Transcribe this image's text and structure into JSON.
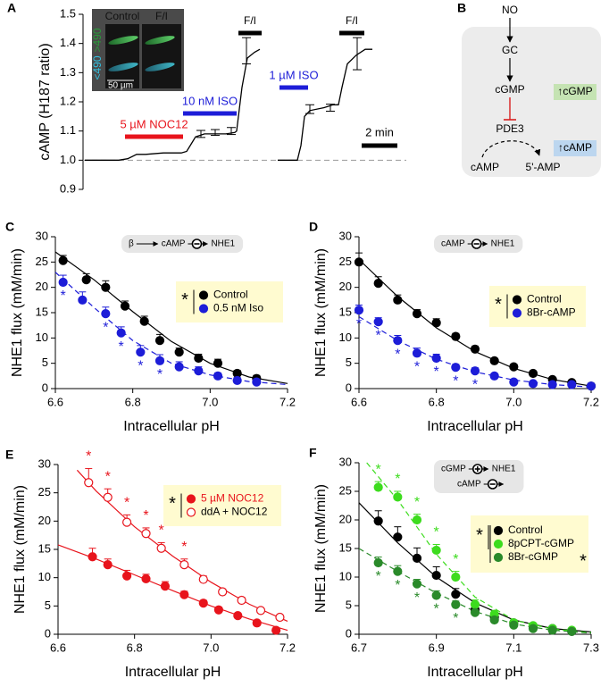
{
  "chart_data": [
    {
      "type": "line",
      "panel_label": "A",
      "y_label": "cAMP (H187 ratio)",
      "xlim": [
        0,
        18.1
      ],
      "ylim": [
        0.9,
        1.5
      ],
      "yticks": [
        0.9,
        {
          "value": 1,
          "label": "1.0"
        },
        1.1,
        1.2,
        1.3,
        1.4,
        1.5
      ],
      "reference_line": 1,
      "series": [
        {
          "color": "#000000",
          "x": [
            0.1,
            2.0,
            2.5,
            3.0,
            3.5,
            4.5,
            5.5,
            5.8,
            6.0,
            6.3,
            6.8,
            8.0,
            8.5,
            8.6,
            8.9,
            9.2,
            9.6,
            9.9,
            null,
            10.9,
            12.0,
            12.2,
            12.4,
            12.7,
            13.5,
            14.0,
            14.3,
            14.5,
            14.8,
            15.3,
            15.8,
            16.2
          ],
          "values": [
            1.0,
            1.0,
            1.005,
            1.02,
            1.02,
            1.025,
            1.025,
            1.03,
            1.05,
            1.08,
            1.09,
            1.09,
            1.095,
            1.1,
            1.25,
            1.35,
            1.37,
            1.38,
            null,
            1.0,
            1.0,
            1.05,
            1.15,
            1.17,
            1.18,
            1.19,
            1.19,
            1.25,
            1.33,
            1.36,
            1.38,
            1.38
          ]
        }
      ],
      "error_points": {
        "x": [
          6.6,
          7.4,
          8.3,
          9.15,
          12.7,
          13.85,
          15.35
        ],
        "values": [
          1.09,
          1.095,
          1.1,
          1.375,
          1.175,
          1.18,
          1.365
        ],
        "errors": [
          0.012,
          0.01,
          0.012,
          0.045,
          0.015,
          0.012,
          0.055
        ]
      },
      "periods": [
        {
          "label": "5 µM NOC12",
          "start": 2.35,
          "end": 5.6,
          "color": "#e8141c"
        },
        {
          "label": "10 nM ISO",
          "start": 5.6,
          "end": 8.6,
          "color": "#1d1dd8"
        },
        {
          "label": "F/I",
          "start": 8.7,
          "end": 10.0,
          "color": "#000000"
        },
        {
          "label": "1 µM ISO",
          "start": 11.0,
          "end": 12.6,
          "color": "#1d1dd8"
        },
        {
          "label": "F/I",
          "start": 14.35,
          "end": 15.75,
          "color": "#000000"
        }
      ],
      "scale_bar": {
        "label": "2 min",
        "length": 2
      },
      "inset": {
        "labels": [
          "Control",
          "F/I"
        ],
        "channels": [
          ">490",
          "<490"
        ],
        "scale": "50 µm"
      }
    },
    {
      "type": "scatter",
      "panel_label": "C",
      "x_label": "Intracellular pH",
      "y_label": "NHE1 flux (mM/min)",
      "xlim": [
        6.6,
        7.2
      ],
      "xticks": [
        6.6,
        6.8,
        {
          "value": 7,
          "label": "7.0"
        },
        7.2
      ],
      "ylim": [
        0,
        30
      ],
      "yticks": [
        0,
        5,
        10,
        15,
        20,
        25,
        30
      ],
      "significance_marker": "*",
      "inset": [
        "β",
        "cAMP",
        "NHE1"
      ],
      "series": [
        {
          "name": "Control",
          "color": "#000000",
          "filled": true,
          "x": [
            6.62,
            6.68,
            6.73,
            6.78,
            6.83,
            6.87,
            6.92,
            6.97,
            7.02,
            7.07,
            7.12
          ],
          "values": [
            25.3,
            21.5,
            20.0,
            16.3,
            13.3,
            9.5,
            7.2,
            6.0,
            5.0,
            3.0,
            2.0
          ],
          "errors": [
            1.0,
            1.2,
            1.3,
            1.0,
            1.0,
            1.2,
            0.8,
            0.8,
            0.8,
            0.6,
            0.6
          ],
          "significant": [
            false,
            false,
            false,
            false,
            false,
            false,
            false,
            false,
            false,
            false,
            false
          ],
          "fit": {
            "dashed": false,
            "x": [
              6.6,
              6.7,
              6.8,
              6.9,
              7.0,
              7.1,
              7.2
            ],
            "values": [
              27,
              21.5,
              15.2,
              9.3,
              5,
              2.3,
              1
            ]
          }
        },
        {
          "name": "0.5 nM Iso",
          "color": "#1d1dd8",
          "filled": true,
          "x": [
            6.62,
            6.67,
            6.73,
            6.77,
            6.82,
            6.87,
            6.92,
            6.97,
            7.02,
            7.07,
            7.12
          ],
          "values": [
            21.0,
            17.5,
            14.8,
            11.0,
            7.2,
            5.5,
            4.3,
            3.5,
            2.5,
            1.6,
            1.3
          ],
          "errors": [
            1.4,
            1.6,
            1.3,
            1.2,
            1.3,
            1.2,
            1.0,
            0.8,
            0.6,
            0.6,
            0.6
          ],
          "significant": [
            true,
            false,
            true,
            true,
            true,
            true,
            false,
            false,
            false,
            false,
            false
          ],
          "fit": {
            "dashed": true,
            "x": [
              6.6,
              6.7,
              6.8,
              6.9,
              7.0,
              7.1,
              7.2
            ],
            "values": [
              23,
              16,
              9.5,
              5,
              2.7,
              1.4,
              0.8
            ]
          }
        }
      ]
    },
    {
      "type": "scatter",
      "panel_label": "D",
      "x_label": "Intracellular pH",
      "y_label": "NHE1 flux (mM/min)",
      "xlim": [
        6.6,
        7.2
      ],
      "xticks": [
        6.6,
        6.8,
        {
          "value": 7,
          "label": "7.0"
        },
        7.2
      ],
      "ylim": [
        0,
        30
      ],
      "yticks": [
        0,
        5,
        10,
        15,
        20,
        25,
        30
      ],
      "significance_marker": "*",
      "inset": [
        "cAMP",
        "NHE1"
      ],
      "series": [
        {
          "name": "Control",
          "color": "#000000",
          "filled": true,
          "x": [
            6.6,
            6.65,
            6.7,
            6.75,
            6.8,
            6.85,
            6.9,
            6.95,
            7.0,
            7.05,
            7.1,
            7.15,
            7.2
          ],
          "values": [
            25.0,
            20.8,
            17.5,
            14.8,
            13.0,
            10.3,
            7.8,
            5.5,
            4.3,
            3.0,
            1.8,
            1.2,
            0.5
          ],
          "errors": [
            1.8,
            1.3,
            1.0,
            0.8,
            0.8,
            0.6,
            0.6,
            0.5,
            0.5,
            0.4,
            0.4,
            0.3,
            0.3
          ],
          "significant": [
            false,
            false,
            false,
            false,
            false,
            false,
            false,
            false,
            false,
            false,
            false,
            false,
            false
          ],
          "fit": {
            "dashed": false,
            "x": [
              6.6,
              6.7,
              6.8,
              6.9,
              7.0,
              7.1,
              7.2
            ],
            "values": [
              25.5,
              18.2,
              12,
              7.3,
              4,
              1.8,
              0.5
            ]
          }
        },
        {
          "name": "8Br-cAMP",
          "color": "#1d1dd8",
          "filled": true,
          "x": [
            6.6,
            6.65,
            6.7,
            6.75,
            6.8,
            6.85,
            6.9,
            6.95,
            7.0,
            7.05,
            7.1,
            7.15,
            7.2
          ],
          "values": [
            15.5,
            13.2,
            9.5,
            7.0,
            6.0,
            4.2,
            3.5,
            2.5,
            1.3,
            1.0,
            0.8,
            0.8,
            0.5
          ],
          "errors": [
            1.0,
            0.8,
            1.0,
            1.0,
            0.8,
            0.6,
            0.6,
            0.5,
            0.5,
            0.4,
            0.3,
            0.3,
            0.3
          ],
          "significant": [
            true,
            true,
            true,
            true,
            true,
            true,
            true,
            false,
            false,
            false,
            false,
            false,
            false
          ],
          "fit": {
            "dashed": true,
            "x": [
              6.6,
              6.7,
              6.8,
              6.9,
              7.0,
              7.1,
              7.2
            ],
            "values": [
              14.2,
              9.5,
              5.8,
              3.3,
              1.7,
              0.8,
              0.3
            ]
          }
        }
      ]
    },
    {
      "type": "scatter",
      "panel_label": "E",
      "x_label": "Intracellular pH",
      "y_label": "NHE1 flux (mM/min)",
      "xlim": [
        6.6,
        7.2
      ],
      "xticks": [
        6.6,
        6.8,
        {
          "value": 7,
          "label": "7.0"
        },
        7.2
      ],
      "ylim": [
        0,
        30
      ],
      "yticks": [
        0,
        5,
        10,
        15,
        20,
        25,
        30
      ],
      "significance_marker": "*",
      "series": [
        {
          "name": "5  µM NOC12",
          "color": "#e8141c",
          "filled": true,
          "x": [
            6.69,
            6.73,
            6.78,
            6.83,
            6.88,
            6.93,
            6.98,
            7.02,
            7.07,
            7.12,
            7.17
          ],
          "values": [
            13.7,
            12.3,
            10.3,
            9.8,
            8.5,
            7.0,
            5.5,
            4.3,
            3.3,
            2.0,
            0.7
          ],
          "errors": [
            1.5,
            1.0,
            1.0,
            0.8,
            0.8,
            0.6,
            0.5,
            0.5,
            0.4,
            0.3,
            0.3
          ],
          "significant": [
            false,
            false,
            false,
            false,
            false,
            false,
            false,
            false,
            false,
            false,
            false
          ],
          "fit": {
            "dashed": false,
            "x": [
              6.6,
              6.7,
              6.8,
              6.9,
              7.0,
              7.1,
              7.2
            ],
            "values": [
              15.8,
              13.3,
              10.5,
              7.7,
              5,
              2.7,
              0.7
            ]
          }
        },
        {
          "name": "ddA + NOC12",
          "color": "#e8141c",
          "filled": false,
          "x": [
            6.68,
            6.73,
            6.78,
            6.83,
            6.87,
            6.93,
            6.98,
            7.03,
            7.08,
            7.13,
            7.18
          ],
          "values": [
            26.8,
            24.2,
            19.8,
            17.8,
            15.2,
            12.3,
            9.7,
            7.5,
            6.0,
            4.2,
            3.0
          ],
          "errors": [
            2.5,
            1.5,
            1.3,
            1.0,
            1.0,
            1.0,
            0.6,
            0.5,
            0.5,
            0.4,
            0.4
          ],
          "significant": [
            true,
            true,
            true,
            true,
            true,
            true,
            false,
            false,
            false,
            false,
            false
          ],
          "fit": {
            "dashed": false,
            "x": [
              6.65,
              6.7,
              6.8,
              6.9,
              7.0,
              7.1,
              7.2
            ],
            "values": [
              29,
              25.3,
              19,
              13.8,
              9.2,
              5.3,
              2.3
            ]
          }
        }
      ]
    },
    {
      "type": "scatter",
      "panel_label": "F",
      "x_label": "Intracellular pH",
      "y_label": "NHE1 flux (mM/min)",
      "xlim": [
        6.7,
        7.3
      ],
      "xticks": [
        6.7,
        6.9,
        7.1,
        7.3
      ],
      "ylim": [
        0,
        30
      ],
      "yticks": [
        0,
        5,
        10,
        15,
        20,
        25,
        30
      ],
      "significance_marker": "*",
      "inset": [
        "cGMP",
        "NHE1",
        "cAMP"
      ],
      "series": [
        {
          "name": "Control",
          "color": "#000000",
          "filled": true,
          "x": [
            6.75,
            6.8,
            6.85,
            6.9,
            6.95,
            7.0,
            7.05,
            7.1,
            7.15,
            7.2,
            7.25
          ],
          "values": [
            19.8,
            17.0,
            13.3,
            10.3,
            7.0,
            4.3,
            3.0,
            2.0,
            1.3,
            1.0,
            0.5
          ],
          "errors": [
            1.8,
            1.8,
            1.8,
            1.5,
            1.0,
            0.8,
            0.6,
            0.5,
            0.4,
            0.3,
            0.3
          ],
          "significant": [
            false,
            false,
            false,
            false,
            false,
            false,
            false,
            false,
            false,
            false,
            false
          ],
          "fit": {
            "dashed": false,
            "x": [
              6.7,
              6.8,
              6.9,
              7.0,
              7.1,
              7.2,
              7.3
            ],
            "values": [
              23,
              16,
              10,
              5.5,
              2.5,
              1,
              0.4
            ]
          }
        },
        {
          "name": "8pCPT-cGMP",
          "color": "#3ddc1e",
          "filled": true,
          "x": [
            6.75,
            6.8,
            6.85,
            6.9,
            6.95,
            7.0,
            7.05,
            7.1,
            7.15,
            7.2,
            7.25
          ],
          "values": [
            25.7,
            24.0,
            20.0,
            14.7,
            10.0,
            5.2,
            3.5,
            2.0,
            1.5,
            1.0,
            0.7
          ],
          "errors": [
            1.0,
            1.0,
            1.0,
            1.0,
            1.0,
            0.8,
            0.6,
            0.5,
            0.4,
            0.3,
            0.3
          ],
          "significant": [
            true,
            true,
            true,
            true,
            true,
            false,
            false,
            false,
            false,
            false,
            false
          ],
          "fit": {
            "dashed": true,
            "x": [
              6.72,
              6.8,
              6.9,
              7.0,
              7.1,
              7.2,
              7.3
            ],
            "values": [
              30,
              23.5,
              14,
              6.5,
              2.5,
              0.9,
              0.3
            ]
          }
        },
        {
          "name": "8Br-cGMP",
          "color": "#2a8a2a",
          "filled": true,
          "x": [
            6.75,
            6.8,
            6.85,
            6.9,
            6.95,
            7.0,
            7.05,
            7.1,
            7.15,
            7.2,
            7.25
          ],
          "values": [
            12.5,
            11.0,
            8.8,
            6.8,
            5.2,
            3.8,
            2.5,
            1.6,
            1.0,
            0.7,
            0.5
          ],
          "errors": [
            1.0,
            1.0,
            0.8,
            0.8,
            0.6,
            0.5,
            0.4,
            0.4,
            0.3,
            0.3,
            0.3
          ],
          "significant": [
            true,
            true,
            true,
            true,
            true,
            false,
            false,
            false,
            false,
            false,
            false
          ],
          "fit": {
            "dashed": true,
            "x": [
              6.7,
              6.8,
              6.9,
              7.0,
              7.1,
              7.2,
              7.3
            ],
            "values": [
              15,
              11,
              7.2,
              4,
              1.8,
              0.7,
              0.2
            ]
          }
        }
      ]
    }
  ],
  "diagram": {
    "panel_label": "B",
    "nodes": [
      "NO",
      "GC",
      "cGMP",
      "PDE3",
      "cAMP",
      "5'-AMP"
    ],
    "badges": [
      "↑cGMP",
      "↑cAMP"
    ]
  }
}
